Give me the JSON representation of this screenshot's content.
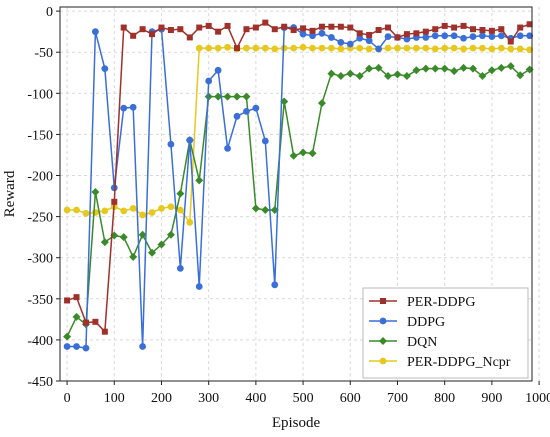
{
  "chart_data": {
    "type": "line",
    "xlabel": "Episode",
    "ylabel": "Reward",
    "xlim": [
      -15,
      985
    ],
    "ylim": [
      -450,
      5
    ],
    "x_ticks": [
      0,
      100,
      200,
      300,
      400,
      500,
      600,
      700,
      800,
      900,
      1000
    ],
    "y_ticks": [
      0,
      -50,
      -100,
      -150,
      -200,
      -250,
      -300,
      -350,
      -400,
      -450
    ],
    "grid": true,
    "legend_position": "bottom-right",
    "series": [
      {
        "name": "PER-DDPG",
        "color": "#a0302a",
        "marker": "square",
        "x": [
          0,
          20,
          40,
          60,
          80,
          100,
          120,
          140,
          160,
          180,
          200,
          220,
          240,
          260,
          280,
          300,
          320,
          340,
          360,
          380,
          400,
          420,
          440,
          460,
          480,
          500,
          520,
          540,
          560,
          580,
          600,
          620,
          640,
          660,
          680,
          700,
          720,
          740,
          760,
          780,
          800,
          820,
          840,
          860,
          880,
          900,
          920,
          940,
          960,
          980
        ],
        "y": [
          -352,
          -348,
          -379,
          -378,
          -390,
          -232,
          -20,
          -30,
          -22,
          -28,
          -20,
          -23,
          -22,
          -32,
          -20,
          -18,
          -25,
          -18,
          -45,
          -22,
          -20,
          -14,
          -22,
          -19,
          -23,
          -21,
          -24,
          -19,
          -19,
          -19,
          -20,
          -27,
          -29,
          -23,
          -20,
          -32,
          -28,
          -27,
          -25,
          -22,
          -18,
          -20,
          -18,
          -22,
          -23,
          -24,
          -22,
          -37,
          -20,
          -16
        ]
      },
      {
        "name": "DDPG",
        "color": "#3a6fd8",
        "marker": "circle",
        "x": [
          0,
          20,
          40,
          60,
          80,
          100,
          120,
          140,
          160,
          180,
          200,
          220,
          240,
          260,
          280,
          300,
          320,
          340,
          360,
          380,
          400,
          420,
          440,
          460,
          480,
          500,
          520,
          540,
          560,
          580,
          600,
          620,
          640,
          660,
          680,
          700,
          720,
          740,
          760,
          780,
          800,
          820,
          840,
          860,
          880,
          900,
          920,
          940,
          960,
          980
        ],
        "y": [
          -408,
          -408,
          -410,
          -25,
          -70,
          -215,
          -118,
          -117,
          -408,
          -25,
          -22,
          -162,
          -313,
          -157,
          -335,
          -85,
          -72,
          -167,
          -128,
          -122,
          -118,
          -158,
          -333,
          -20,
          -20,
          -28,
          -30,
          -27,
          -32,
          -38,
          -40,
          -33,
          -36,
          -46,
          -31,
          -32,
          -34,
          -32,
          -32,
          -30,
          -30,
          -30,
          -33,
          -31,
          -30,
          -31,
          -30,
          -33,
          -30,
          -30
        ]
      },
      {
        "name": "DQN",
        "color": "#3a8a2a",
        "marker": "diamond",
        "x": [
          0,
          20,
          40,
          60,
          80,
          100,
          120,
          140,
          160,
          180,
          200,
          220,
          240,
          260,
          280,
          300,
          320,
          340,
          360,
          380,
          400,
          420,
          440,
          460,
          480,
          500,
          520,
          540,
          560,
          580,
          600,
          620,
          640,
          660,
          680,
          700,
          720,
          740,
          760,
          780,
          800,
          820,
          840,
          860,
          880,
          900,
          920,
          940,
          960,
          980
        ],
        "y": [
          -396,
          -372,
          -381,
          -220,
          -281,
          -273,
          -275,
          -299,
          -272,
          -294,
          -284,
          -272,
          -222,
          -157,
          -206,
          -104,
          -104,
          -104,
          -104,
          -104,
          -240,
          -242,
          -242,
          -110,
          -176,
          -172,
          -173,
          -112,
          -76,
          -79,
          -76,
          -79,
          -70,
          -69,
          -79,
          -77,
          -79,
          -72,
          -70,
          -70,
          -70,
          -73,
          -69,
          -70,
          -79,
          -72,
          -69,
          -67,
          -78,
          -71
        ]
      },
      {
        "name": "PER-DDPG_Ncpr",
        "color": "#e6c81e",
        "marker": "circle",
        "x": [
          0,
          20,
          40,
          60,
          80,
          100,
          120,
          140,
          160,
          180,
          200,
          220,
          240,
          260,
          280,
          300,
          320,
          340,
          360,
          380,
          400,
          420,
          440,
          460,
          480,
          500,
          520,
          540,
          560,
          580,
          600,
          620,
          640,
          660,
          680,
          700,
          720,
          740,
          760,
          780,
          800,
          820,
          840,
          860,
          880,
          900,
          920,
          940,
          960,
          980
        ],
        "y": [
          -242,
          -242,
          -246,
          -245,
          -243,
          -238,
          -243,
          -240,
          -248,
          -245,
          -240,
          -238,
          -242,
          -257,
          -45,
          -45,
          -45,
          -44,
          -46,
          -45,
          -45,
          -45,
          -46,
          -45,
          -45,
          -44,
          -45,
          -45,
          -45,
          -46,
          -45,
          -45,
          -46,
          -46,
          -45,
          -45,
          -45,
          -45,
          -45,
          -46,
          -45,
          -45,
          -46,
          -45,
          -45,
          -46,
          -45,
          -46,
          -46,
          -47
        ]
      }
    ]
  }
}
